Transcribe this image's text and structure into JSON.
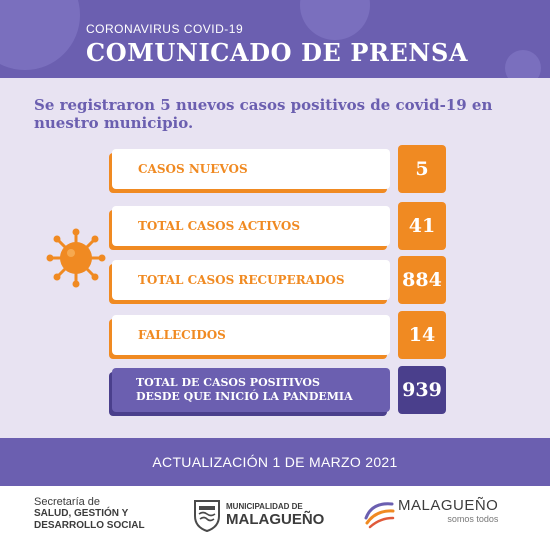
{
  "header": {
    "subtitle": "CORONAVIRUS COVID-19",
    "title": "COMUNICADO DE PRENSA"
  },
  "intro": "Se registraron 5 nuevos casos positivos de covid-19 en nuestro municipio.",
  "stats": [
    {
      "label": "CASOS NUEVOS",
      "value": "5"
    },
    {
      "label": "TOTAL CASOS ACTIVOS",
      "value": "41"
    },
    {
      "label": "TOTAL CASOS RECUPERADOS",
      "value": "884"
    },
    {
      "label": "FALLECIDOS",
      "value": "14"
    }
  ],
  "total": {
    "label_line1": "TOTAL DE CASOS POSITIVOS",
    "label_line2": "DESDE QUE INICIÓ LA PANDEMIA",
    "value": "939"
  },
  "update": "ACTUALIZACIÓN 1 DE MARZO 2021",
  "footer": {
    "secretaria_line1": "Secretaría de",
    "secretaria_line2": "SALUD, GESTIÓN Y",
    "secretaria_line3": "DESARROLLO SOCIAL",
    "municipalidad_line1": "MUNICIPALIDAD DE",
    "municipalidad_line2": "MALAGUEÑO",
    "brand_name": "MALAGUEÑO",
    "brand_tagline": "somos todos"
  },
  "colors": {
    "purple": "#6b5fb0",
    "dark_purple": "#4a3f8c",
    "orange": "#f08a22",
    "lavender": "#e8e3f2"
  },
  "icons": [
    "coronavirus-icon",
    "municipal-shield-icon",
    "malagueno-swirl-icon"
  ]
}
